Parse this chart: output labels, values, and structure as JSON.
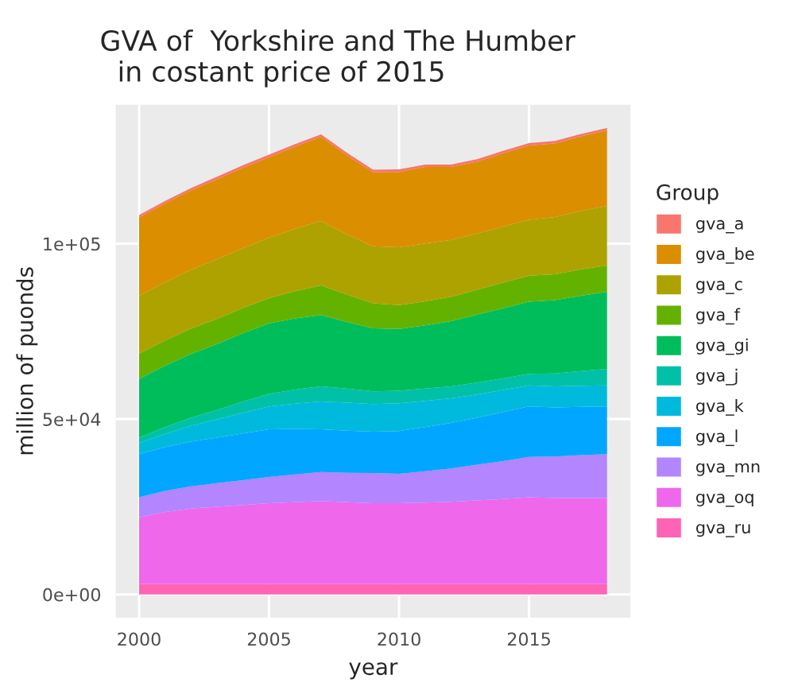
{
  "chart_data": {
    "type": "area",
    "stacked": true,
    "title": "GVA of  Yorkshire and The Humber\n  in costant price of 2015",
    "xlabel": "year",
    "ylabel": "million of puonds",
    "legend_title": "Group",
    "legend": "right",
    "x": [
      2000,
      2001,
      2002,
      2003,
      2004,
      2005,
      2006,
      2007,
      2008,
      2009,
      2010,
      2011,
      2012,
      2013,
      2014,
      2015,
      2016,
      2017,
      2018
    ],
    "series": [
      {
        "name": "gva_ru",
        "color": "#ff63b6",
        "values": [
          3000,
          3000,
          3000,
          3000,
          3000,
          3000,
          3000,
          3000,
          3000,
          3000,
          3000,
          3000,
          3000,
          3000,
          3000,
          3000,
          3000,
          3000,
          3000
        ]
      },
      {
        "name": "gva_oq",
        "color": "#ef67eb",
        "values": [
          19000,
          20500,
          21500,
          22000,
          22500,
          23000,
          23300,
          23600,
          23300,
          23000,
          23000,
          23200,
          23400,
          23800,
          24200,
          24700,
          24500,
          24500,
          24500
        ]
      },
      {
        "name": "gva_mn",
        "color": "#b385ff",
        "values": [
          5700,
          6000,
          6300,
          6700,
          7100,
          7500,
          7900,
          8300,
          8400,
          8600,
          8400,
          8900,
          9500,
          10200,
          10800,
          11500,
          11800,
          12200,
          12500
        ]
      },
      {
        "name": "gva_l",
        "color": "#00a6ff",
        "values": [
          12300,
          12500,
          12800,
          13000,
          13300,
          13600,
          13000,
          12200,
          12000,
          11800,
          12200,
          12600,
          13000,
          13400,
          14000,
          14400,
          14000,
          13800,
          13600
        ]
      },
      {
        "name": "gva_k",
        "color": "#00bade",
        "values": [
          3200,
          3800,
          4500,
          5200,
          5900,
          6500,
          7200,
          7900,
          8000,
          7900,
          7900,
          7500,
          7000,
          6600,
          6300,
          6000,
          6000,
          6000,
          6000
        ]
      },
      {
        "name": "gva_j",
        "color": "#00c1a7",
        "values": [
          1500,
          1900,
          2300,
          2700,
          3200,
          3600,
          4000,
          4300,
          4000,
          3600,
          3600,
          3500,
          3400,
          3400,
          3300,
          3300,
          3700,
          4200,
          4700
        ]
      },
      {
        "name": "gva_gi",
        "color": "#00bd5c",
        "values": [
          16800,
          17500,
          18200,
          18800,
          19500,
          20100,
          20300,
          20400,
          19000,
          18000,
          17600,
          18000,
          18600,
          19400,
          20000,
          20600,
          20900,
          21500,
          22000
        ]
      },
      {
        "name": "gva_f",
        "color": "#64b200",
        "values": [
          7200,
          7200,
          7200,
          7200,
          7200,
          7200,
          7800,
          8400,
          7800,
          7100,
          6800,
          6900,
          7000,
          7100,
          7300,
          7400,
          7400,
          7500,
          7500
        ]
      },
      {
        "name": "gva_c",
        "color": "#aea200",
        "values": [
          16500,
          16700,
          16800,
          17000,
          17100,
          17200,
          17800,
          18400,
          17200,
          16300,
          16500,
          16500,
          16200,
          16000,
          16000,
          15900,
          16300,
          16700,
          17000
        ]
      },
      {
        "name": "gva_be",
        "color": "#db8e00",
        "values": [
          22300,
          22400,
          22600,
          22800,
          22900,
          23000,
          23400,
          24000,
          22500,
          21100,
          21500,
          21800,
          20800,
          20500,
          20900,
          21200,
          21000,
          21200,
          21500
        ]
      },
      {
        "name": "gva_a",
        "color": "#f8766d",
        "values": [
          700,
          700,
          700,
          700,
          700,
          700,
          700,
          700,
          700,
          700,
          700,
          700,
          700,
          700,
          700,
          700,
          700,
          700,
          700
        ]
      }
    ],
    "xlim": [
      1999.1,
      2018.9
    ],
    "xticks": [
      2000,
      2005,
      2010,
      2015
    ],
    "ylim": [
      -6650,
      139650
    ],
    "yticks": [
      {
        "value": 0,
        "label": "0e+00"
      },
      {
        "value": 50000,
        "label": "5e+04"
      },
      {
        "value": 100000,
        "label": "1e+05"
      }
    ],
    "grid": true
  }
}
